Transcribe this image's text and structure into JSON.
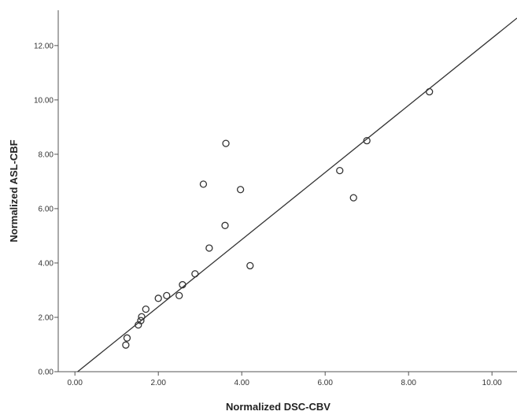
{
  "chart_data": {
    "type": "scatter",
    "title": "",
    "xlabel": "Normalized DSC-CBV",
    "ylabel": "Normalized ASL-CBF",
    "xlim": [
      -0.4,
      10.6
    ],
    "ylim": [
      0.0,
      13.3
    ],
    "x_ticks": [
      "0.00",
      "2.00",
      "4.00",
      "6.00",
      "8.00",
      "10.00"
    ],
    "y_ticks": [
      "0.00",
      "2.00",
      "4.00",
      "6.00",
      "8.00",
      "10.00",
      "12.00"
    ],
    "grid": false,
    "legend": "none",
    "marker": "open-circle",
    "colors": {
      "points": "#333333",
      "line": "#333333",
      "axes": "#555555"
    },
    "points": [
      {
        "x": 1.22,
        "y": 0.98
      },
      {
        "x": 1.25,
        "y": 1.24
      },
      {
        "x": 1.52,
        "y": 1.72
      },
      {
        "x": 1.58,
        "y": 1.88
      },
      {
        "x": 1.6,
        "y": 2.02
      },
      {
        "x": 1.7,
        "y": 2.3
      },
      {
        "x": 2.0,
        "y": 2.7
      },
      {
        "x": 2.2,
        "y": 2.8
      },
      {
        "x": 2.5,
        "y": 2.8
      },
      {
        "x": 2.58,
        "y": 3.2
      },
      {
        "x": 2.88,
        "y": 3.6
      },
      {
        "x": 3.08,
        "y": 6.9
      },
      {
        "x": 3.22,
        "y": 4.55
      },
      {
        "x": 3.6,
        "y": 5.38
      },
      {
        "x": 3.62,
        "y": 8.4
      },
      {
        "x": 3.97,
        "y": 6.7
      },
      {
        "x": 4.2,
        "y": 3.9
      },
      {
        "x": 6.35,
        "y": 7.4
      },
      {
        "x": 6.68,
        "y": 6.4
      },
      {
        "x": 7.0,
        "y": 8.5
      },
      {
        "x": 8.5,
        "y": 10.3
      }
    ],
    "fit_line": {
      "slope": 1.235,
      "intercept": -0.08
    }
  }
}
